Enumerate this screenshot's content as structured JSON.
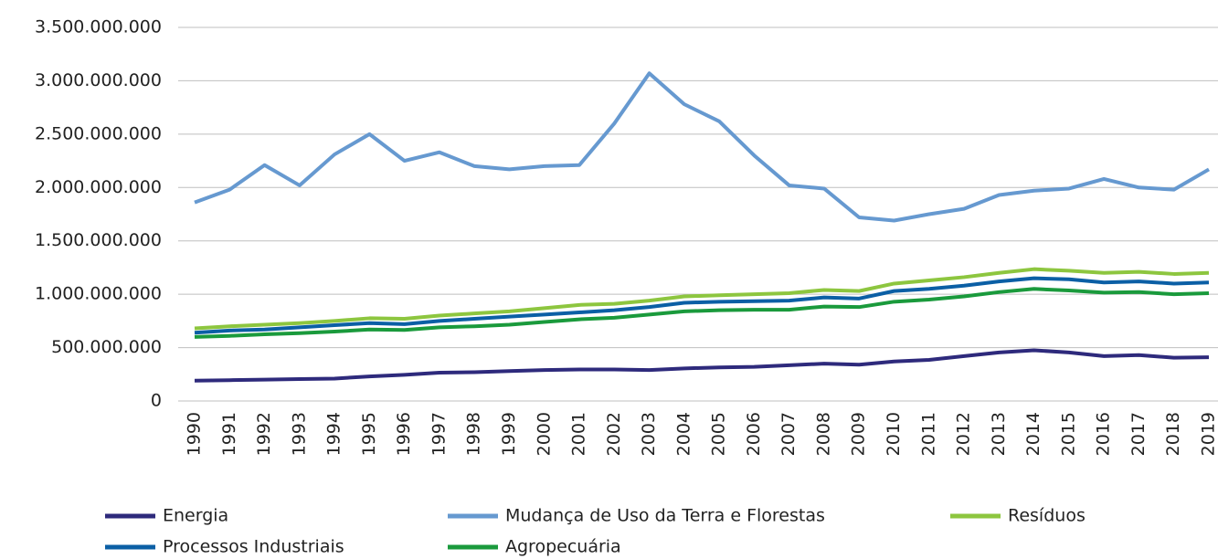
{
  "chart_data": {
    "type": "line",
    "x": [
      "1990",
      "1991",
      "1992",
      "1993",
      "1994",
      "1995",
      "1996",
      "1997",
      "1998",
      "1999",
      "2000",
      "2001",
      "2002",
      "2003",
      "2004",
      "2005",
      "2006",
      "2007",
      "2008",
      "2009",
      "2010",
      "2011",
      "2012",
      "2013",
      "2014",
      "2015",
      "2016",
      "2017",
      "2018",
      "2019"
    ],
    "series": [
      {
        "name": "Energia",
        "color": "#2e2a7c",
        "values": [
          190000000,
          195000000,
          200000000,
          205000000,
          210000000,
          230000000,
          245000000,
          265000000,
          270000000,
          280000000,
          290000000,
          295000000,
          295000000,
          290000000,
          305000000,
          315000000,
          320000000,
          335000000,
          350000000,
          340000000,
          370000000,
          385000000,
          420000000,
          455000000,
          475000000,
          455000000,
          420000000,
          430000000,
          405000000,
          410000000
        ]
      },
      {
        "name": "Mudança de Uso da Terra e Florestas",
        "color": "#6699d0",
        "values": [
          1860000000,
          1980000000,
          2210000000,
          2020000000,
          2310000000,
          2500000000,
          2250000000,
          2330000000,
          2200000000,
          2170000000,
          2200000000,
          2210000000,
          2600000000,
          3070000000,
          2780000000,
          2620000000,
          2300000000,
          2020000000,
          1990000000,
          1720000000,
          1690000000,
          1750000000,
          1800000000,
          1930000000,
          1970000000,
          1990000000,
          2080000000,
          2000000000,
          1980000000,
          2170000000
        ]
      },
      {
        "name": "Resíduos",
        "color": "#8dc63f",
        "values": [
          680000000,
          700000000,
          715000000,
          730000000,
          750000000,
          775000000,
          770000000,
          800000000,
          820000000,
          840000000,
          870000000,
          900000000,
          910000000,
          940000000,
          980000000,
          990000000,
          1000000000,
          1010000000,
          1040000000,
          1030000000,
          1100000000,
          1130000000,
          1160000000,
          1200000000,
          1235000000,
          1220000000,
          1200000000,
          1210000000,
          1190000000,
          1200000000
        ]
      },
      {
        "name": "Processos Industriais",
        "color": "#0b5fa5",
        "values": [
          640000000,
          660000000,
          670000000,
          690000000,
          710000000,
          730000000,
          720000000,
          750000000,
          770000000,
          790000000,
          810000000,
          830000000,
          850000000,
          880000000,
          920000000,
          930000000,
          935000000,
          940000000,
          970000000,
          960000000,
          1030000000,
          1050000000,
          1080000000,
          1120000000,
          1150000000,
          1140000000,
          1110000000,
          1120000000,
          1100000000,
          1110000000
        ]
      },
      {
        "name": "Agropecuária",
        "color": "#1a9a3c",
        "values": [
          600000000,
          610000000,
          625000000,
          635000000,
          650000000,
          670000000,
          665000000,
          690000000,
          700000000,
          715000000,
          740000000,
          765000000,
          780000000,
          810000000,
          840000000,
          850000000,
          855000000,
          855000000,
          885000000,
          880000000,
          930000000,
          950000000,
          980000000,
          1020000000,
          1050000000,
          1035000000,
          1015000000,
          1020000000,
          1000000000,
          1010000000
        ]
      }
    ],
    "ylim": [
      0,
      3500000000
    ],
    "yticks": [
      0,
      {
        "value": 500000000,
        "label": "500.000.000"
      },
      {
        "value": 1000000000,
        "label": "1.000.000.000"
      },
      {
        "value": 1500000000,
        "label": "1.500.000.000"
      },
      {
        "value": 2000000000,
        "label": "2.000.000.000"
      },
      {
        "value": 2500000000,
        "label": "2.500.000.000"
      },
      {
        "value": 3000000000,
        "label": "3.000.000.000"
      },
      {
        "value": 3500000000,
        "label": "3.500.000.000"
      }
    ],
    "grid": true,
    "legend": "bottom"
  }
}
